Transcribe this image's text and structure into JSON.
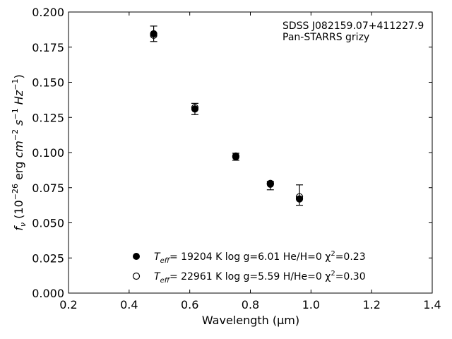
{
  "chart_data": {
    "type": "scatter",
    "xlabel": "Wavelength (μm)",
    "ylabel_parts": {
      "f": "f",
      "nu": "ν",
      "open": " (10",
      "exp26": "−26",
      "erg": " erg ",
      "cm": "cm",
      "exp2": "−2",
      "s": " s",
      "exp1a": "−1",
      "hz": " Hz",
      "exp1b": "−1",
      "close": ")"
    },
    "xlim": [
      0.2,
      1.4
    ],
    "ylim": [
      0.0,
      0.2
    ],
    "xticks": [
      "0.2",
      "0.4",
      "0.6",
      "0.8",
      "1.0",
      "1.2",
      "1.4"
    ],
    "yticks": [
      "0.000",
      "0.025",
      "0.050",
      "0.075",
      "0.100",
      "0.125",
      "0.150",
      "0.175",
      "0.200"
    ],
    "annotation": [
      "SDSS J082159.07+411227.9",
      "Pan-STARRS grizy"
    ],
    "observed": {
      "x": [
        0.481,
        0.617,
        0.752,
        0.866,
        0.962
      ],
      "y": [
        0.1845,
        0.131,
        0.097,
        0.0765,
        0.067
      ],
      "yerr_low": [
        0.0055,
        0.004,
        0.0025,
        0.003,
        0.0045
      ],
      "yerr_high": [
        0.0055,
        0.004,
        0.0025,
        0.003,
        0.01
      ]
    },
    "series": [
      {
        "marker": "filled-circle",
        "x": [
          0.481,
          0.617,
          0.752,
          0.866,
          0.962
        ],
        "y": [
          0.1845,
          0.131,
          0.097,
          0.0775,
          0.067
        ],
        "legend": {
          "t": "T",
          "eff": "eff",
          "rest": "= 19204 K  log g=6.01  He/H=0  χ",
          "sup": "2",
          "tail": "=0.23"
        }
      },
      {
        "marker": "open-circle",
        "x": [
          0.481,
          0.617,
          0.752,
          0.866,
          0.962
        ],
        "y": [
          0.1835,
          0.132,
          0.0975,
          0.078,
          0.0685
        ],
        "legend": {
          "t": "T",
          "eff": "eff",
          "rest": "= 22961 K  log g=5.59  H/He=0  χ",
          "sup": "2",
          "tail": "=0.30"
        }
      }
    ],
    "legend_location": "lower-center",
    "grid": false
  }
}
